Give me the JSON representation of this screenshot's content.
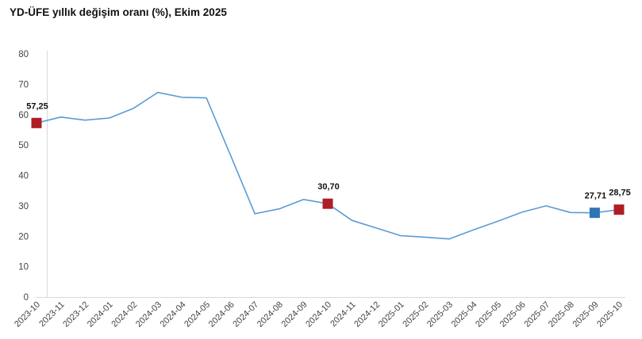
{
  "title": "YD-ÜFE yıllık değişim oranı (%), Ekim 2025",
  "chart_data": {
    "type": "line",
    "title": "YD-ÜFE yıllık değişim oranı (%), Ekim 2025",
    "x": [
      "2023-10",
      "2023-11",
      "2023-12",
      "2024-01",
      "2024-02",
      "2024-03",
      "2024-04",
      "2024-05",
      "2024-06",
      "2024-07",
      "2024-08",
      "2024-09",
      "2024-10",
      "2024-11",
      "2024-12",
      "2025-01",
      "2025-02",
      "2025-03",
      "2025-04",
      "2025-05",
      "2025-06",
      "2025-07",
      "2025-08",
      "2025-09",
      "2025-10"
    ],
    "values": [
      57.25,
      59.2,
      58.2,
      58.9,
      62.1,
      67.3,
      65.7,
      65.5,
      46.5,
      27.4,
      29.0,
      32.1,
      30.7,
      25.2,
      22.7,
      20.2,
      19.7,
      19.1,
      22.1,
      24.9,
      27.9,
      30.0,
      27.8,
      27.71,
      28.75
    ],
    "ylim": [
      0,
      80
    ],
    "yticks": [
      0,
      10,
      20,
      30,
      40,
      50,
      60,
      70,
      80
    ],
    "grid": false,
    "legend": null,
    "annotations": [
      {
        "index": 0,
        "label": "57,25",
        "marker_color": "#AE1E24"
      },
      {
        "index": 12,
        "label": "30,70",
        "marker_color": "#AE1E24"
      },
      {
        "index": 23,
        "label": "27,71",
        "marker_color": "#2E75B6"
      },
      {
        "index": 24,
        "label": "28,75",
        "marker_color": "#AE1E24"
      }
    ],
    "colors": {
      "line": "#5B9BD5",
      "axis": "#D9D9D9",
      "tick_label": "#444444",
      "data_label": "#111111",
      "marker_red": "#AE1E24",
      "marker_blue": "#2E75B6"
    }
  }
}
